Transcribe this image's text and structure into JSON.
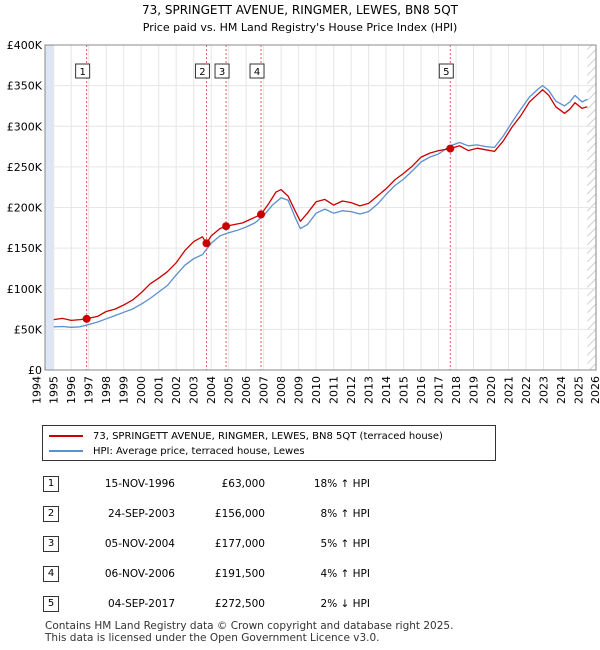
{
  "chart_data": {
    "type": "line",
    "title": "73, SPRINGETT AVENUE, RINGMER, LEWES, BN8 5QT",
    "subtitle": "Price paid vs. HM Land Registry's House Price Index (HPI)",
    "x_range": [
      1994.5,
      2026.0
    ],
    "ylim": [
      0,
      400000
    ],
    "y_ticks": [
      {
        "value": 0,
        "label": "£0"
      },
      {
        "value": 50000,
        "label": "£50K"
      },
      {
        "value": 100000,
        "label": "£100K"
      },
      {
        "value": 150000,
        "label": "£150K"
      },
      {
        "value": 200000,
        "label": "£200K"
      },
      {
        "value": 250000,
        "label": "£250K"
      },
      {
        "value": 300000,
        "label": "£300K"
      },
      {
        "value": 350000,
        "label": "£350K"
      },
      {
        "value": 400000,
        "label": "£400K"
      }
    ],
    "x_ticks": [
      "1994",
      "1995",
      "1996",
      "1997",
      "1998",
      "1999",
      "2000",
      "2001",
      "2002",
      "2003",
      "2004",
      "2005",
      "2006",
      "2007",
      "2008",
      "2009",
      "2010",
      "2011",
      "2012",
      "2013",
      "2014",
      "2015",
      "2016",
      "2017",
      "2018",
      "2019",
      "2020",
      "2021",
      "2022",
      "2023",
      "2024",
      "2025",
      "2026"
    ],
    "colors": {
      "price": "#cc0000",
      "hpi": "#5b8fcf",
      "marker_line": "#e06060",
      "shade": "#dde6f5",
      "hatch": "#c0c0c0",
      "grid": "#e6e6e6"
    },
    "series": [
      {
        "name": "73, SPRINGETT AVENUE, RINGMER, LEWES, BN8 5QT (terraced house)",
        "key": "price",
        "points": [
          [
            1995.0,
            62000
          ],
          [
            1995.5,
            63500
          ],
          [
            1996.0,
            61000
          ],
          [
            1996.5,
            62000
          ],
          [
            1996.88,
            63000
          ],
          [
            1997.5,
            66000
          ],
          [
            1998.0,
            72000
          ],
          [
            1998.5,
            75000
          ],
          [
            1999.0,
            80000
          ],
          [
            1999.5,
            86000
          ],
          [
            2000.0,
            95000
          ],
          [
            2000.5,
            106000
          ],
          [
            2001.0,
            113000
          ],
          [
            2001.5,
            121000
          ],
          [
            2002.0,
            132000
          ],
          [
            2002.5,
            147000
          ],
          [
            2003.0,
            158000
          ],
          [
            2003.5,
            164000
          ],
          [
            2003.73,
            156000
          ],
          [
            2004.0,
            165000
          ],
          [
            2004.5,
            174000
          ],
          [
            2004.85,
            177000
          ],
          [
            2005.3,
            179000
          ],
          [
            2005.8,
            181000
          ],
          [
            2006.3,
            186000
          ],
          [
            2006.85,
            191500
          ],
          [
            2007.3,
            205000
          ],
          [
            2007.7,
            219000
          ],
          [
            2008.0,
            222000
          ],
          [
            2008.4,
            214000
          ],
          [
            2008.8,
            196000
          ],
          [
            2009.1,
            183000
          ],
          [
            2009.5,
            193000
          ],
          [
            2010.0,
            207000
          ],
          [
            2010.5,
            210000
          ],
          [
            2011.0,
            203000
          ],
          [
            2011.5,
            208000
          ],
          [
            2012.0,
            206000
          ],
          [
            2012.5,
            202000
          ],
          [
            2013.0,
            205000
          ],
          [
            2013.5,
            214000
          ],
          [
            2014.0,
            223000
          ],
          [
            2014.5,
            234000
          ],
          [
            2015.0,
            242000
          ],
          [
            2015.5,
            251000
          ],
          [
            2016.0,
            262000
          ],
          [
            2016.5,
            267000
          ],
          [
            2017.0,
            270000
          ],
          [
            2017.67,
            272500
          ],
          [
            2018.2,
            276000
          ],
          [
            2018.7,
            270000
          ],
          [
            2019.2,
            273000
          ],
          [
            2019.7,
            271000
          ],
          [
            2020.2,
            269000
          ],
          [
            2020.7,
            282000
          ],
          [
            2021.2,
            299000
          ],
          [
            2021.7,
            313000
          ],
          [
            2022.2,
            330000
          ],
          [
            2022.7,
            340000
          ],
          [
            2022.95,
            345000
          ],
          [
            2023.3,
            338000
          ],
          [
            2023.7,
            324000
          ],
          [
            2024.2,
            316000
          ],
          [
            2024.5,
            321000
          ],
          [
            2024.8,
            329000
          ],
          [
            2025.2,
            322000
          ],
          [
            2025.5,
            324000
          ]
        ]
      },
      {
        "name": "HPI: Average price, terraced house, Lewes",
        "key": "hpi",
        "points": [
          [
            1995.0,
            53000
          ],
          [
            1995.5,
            53500
          ],
          [
            1996.0,
            52500
          ],
          [
            1996.5,
            53200
          ],
          [
            1997.0,
            56000
          ],
          [
            1997.5,
            59000
          ],
          [
            1998.0,
            63000
          ],
          [
            1998.5,
            67000
          ],
          [
            1999.0,
            71000
          ],
          [
            1999.5,
            75000
          ],
          [
            2000.0,
            81000
          ],
          [
            2000.5,
            88000
          ],
          [
            2001.0,
            96000
          ],
          [
            2001.5,
            104000
          ],
          [
            2002.0,
            117000
          ],
          [
            2002.5,
            129000
          ],
          [
            2003.0,
            137000
          ],
          [
            2003.5,
            142000
          ],
          [
            2004.0,
            156000
          ],
          [
            2004.5,
            165000
          ],
          [
            2005.0,
            169000
          ],
          [
            2005.5,
            172000
          ],
          [
            2006.0,
            176000
          ],
          [
            2006.5,
            181000
          ],
          [
            2007.0,
            190000
          ],
          [
            2007.5,
            203000
          ],
          [
            2008.0,
            212000
          ],
          [
            2008.4,
            209000
          ],
          [
            2008.8,
            188000
          ],
          [
            2009.1,
            174000
          ],
          [
            2009.5,
            179000
          ],
          [
            2010.0,
            193000
          ],
          [
            2010.5,
            198000
          ],
          [
            2011.0,
            193000
          ],
          [
            2011.5,
            196000
          ],
          [
            2012.0,
            195000
          ],
          [
            2012.5,
            192000
          ],
          [
            2013.0,
            195000
          ],
          [
            2013.5,
            204000
          ],
          [
            2014.0,
            216000
          ],
          [
            2014.5,
            227000
          ],
          [
            2015.0,
            235000
          ],
          [
            2015.5,
            245000
          ],
          [
            2016.0,
            256000
          ],
          [
            2016.5,
            262000
          ],
          [
            2017.0,
            266000
          ],
          [
            2017.67,
            276000
          ],
          [
            2018.2,
            280000
          ],
          [
            2018.7,
            276000
          ],
          [
            2019.2,
            277000
          ],
          [
            2019.7,
            275000
          ],
          [
            2020.2,
            274000
          ],
          [
            2020.7,
            288000
          ],
          [
            2021.2,
            305000
          ],
          [
            2021.7,
            321000
          ],
          [
            2022.2,
            336000
          ],
          [
            2022.7,
            346000
          ],
          [
            2022.95,
            350000
          ],
          [
            2023.3,
            344000
          ],
          [
            2023.7,
            331000
          ],
          [
            2024.2,
            325000
          ],
          [
            2024.5,
            330000
          ],
          [
            2024.8,
            338000
          ],
          [
            2025.2,
            330000
          ],
          [
            2025.5,
            333000
          ]
        ]
      }
    ],
    "sales": [
      {
        "id": "1",
        "label": "1",
        "x": 1996.88,
        "price": 63000,
        "date": "15-NOV-1996",
        "price_label": "£63,000",
        "hpi_label": "18% ↑ HPI"
      },
      {
        "id": "2",
        "label": "2",
        "x": 2003.73,
        "price": 156000,
        "date": "24-SEP-2003",
        "price_label": "£156,000",
        "hpi_label": "8% ↑ HPI"
      },
      {
        "id": "3",
        "label": "3",
        "x": 2004.85,
        "price": 177000,
        "date": "05-NOV-2004",
        "price_label": "£177,000",
        "hpi_label": "5% ↑ HPI"
      },
      {
        "id": "4",
        "label": "4",
        "x": 2006.85,
        "price": 191500,
        "date": "06-NOV-2006",
        "price_label": "£191,500",
        "hpi_label": "4% ↑ HPI"
      },
      {
        "id": "5",
        "label": "5",
        "x": 2017.67,
        "price": 272500,
        "date": "04-SEP-2017",
        "price_label": "£272,500",
        "hpi_label": "2% ↓ HPI"
      }
    ],
    "shaded_until": 1995.0,
    "hatched_from": 2025.5
  },
  "legend": {
    "price_label": "73, SPRINGETT AVENUE, RINGMER, LEWES, BN8 5QT (terraced house)",
    "hpi_label": "HPI: Average price, terraced house, Lewes"
  },
  "footer": {
    "line1": "Contains HM Land Registry data © Crown copyright and database right 2025.",
    "line2": "This data is licensed under the Open Government Licence v3.0."
  }
}
